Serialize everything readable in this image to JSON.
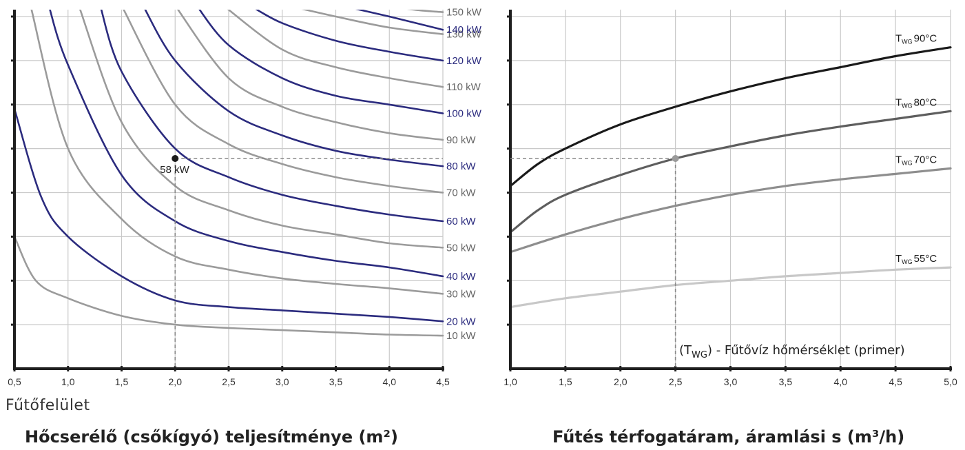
{
  "chart_data": [
    {
      "type": "line",
      "title": "Hőcserélő (csőkígyó) teljesítménye (m²)",
      "xlabel": "Fűtőfelület",
      "ylabel": "",
      "xlim": [
        0.5,
        4.5
      ],
      "ylim": [
        0,
        160
      ],
      "x_ticks": [
        "0,5",
        "1,0",
        "1,5",
        "2,0",
        "2,5",
        "3,0",
        "3,5",
        "4,0",
        "4,5"
      ],
      "grid": true,
      "legend": "none",
      "series": [
        {
          "name": "10 kW",
          "color": "#9b9b9b",
          "points": [
            [
              0.5,
              60
            ],
            [
              0.7,
              40
            ],
            [
              1.0,
              32
            ],
            [
              1.5,
              24
            ],
            [
              2.0,
              20
            ],
            [
              2.5,
              18.5
            ],
            [
              3.0,
              17.5
            ],
            [
              3.5,
              16.5
            ],
            [
              4.0,
              15.5
            ],
            [
              4.5,
              15
            ]
          ]
        },
        {
          "name": "20 kW",
          "color": "#2b2b7e",
          "points": [
            [
              0.5,
              118
            ],
            [
              0.75,
              78
            ],
            [
              1.0,
              60
            ],
            [
              1.5,
              42
            ],
            [
              2.0,
              31
            ],
            [
              2.5,
              28
            ],
            [
              3.0,
              26.5
            ],
            [
              3.5,
              25
            ],
            [
              4.0,
              23.5
            ],
            [
              4.5,
              21.5
            ]
          ]
        },
        {
          "name": "30 kW",
          "color": "#9b9b9b",
          "points": [
            [
              0.65,
              165
            ],
            [
              1.0,
              100
            ],
            [
              1.5,
              68
            ],
            [
              2.0,
              51
            ],
            [
              2.5,
              45
            ],
            [
              3.0,
              41
            ],
            [
              3.5,
              38.5
            ],
            [
              4.0,
              36.5
            ],
            [
              4.5,
              34
            ]
          ]
        },
        {
          "name": "40 kW",
          "color": "#2b2b7e",
          "points": [
            [
              0.82,
              165
            ],
            [
              1.0,
              138
            ],
            [
              1.5,
              88
            ],
            [
              2.0,
              67
            ],
            [
              2.5,
              58
            ],
            [
              3.0,
              53
            ],
            [
              3.5,
              49
            ],
            [
              4.0,
              46
            ],
            [
              4.5,
              42
            ]
          ]
        },
        {
          "name": "50 kW",
          "color": "#9b9b9b",
          "points": [
            [
              1.1,
              165
            ],
            [
              1.5,
              112
            ],
            [
              2.0,
              83
            ],
            [
              2.5,
              72
            ],
            [
              3.0,
              65
            ],
            [
              3.5,
              61
            ],
            [
              4.0,
              57
            ],
            [
              4.5,
              55
            ]
          ]
        },
        {
          "name": "60 kW",
          "color": "#2b2b7e",
          "points": [
            [
              1.3,
              165
            ],
            [
              1.5,
              135
            ],
            [
              2.0,
              100
            ],
            [
              2.5,
              87
            ],
            [
              3.0,
              79
            ],
            [
              3.5,
              74
            ],
            [
              4.0,
              70
            ],
            [
              4.5,
              67
            ]
          ]
        },
        {
          "name": "70 kW",
          "color": "#9b9b9b",
          "points": [
            [
              1.5,
              165
            ],
            [
              2.0,
              120
            ],
            [
              2.5,
              102
            ],
            [
              3.0,
              93
            ],
            [
              3.5,
              87
            ],
            [
              4.0,
              83
            ],
            [
              4.5,
              80
            ]
          ]
        },
        {
          "name": "80 kW",
          "color": "#2b2b7e",
          "points": [
            [
              1.7,
              165
            ],
            [
              2.0,
              140
            ],
            [
              2.5,
              117
            ],
            [
              3.0,
              106
            ],
            [
              3.5,
              99
            ],
            [
              4.0,
              95
            ],
            [
              4.5,
              92
            ]
          ]
        },
        {
          "name": "90 kW",
          "color": "#9b9b9b",
          "points": [
            [
              2.0,
              165
            ],
            [
              2.5,
              132
            ],
            [
              3.0,
              119
            ],
            [
              3.5,
              112
            ],
            [
              4.0,
              107
            ],
            [
              4.5,
              104
            ]
          ]
        },
        {
          "name": "100 kW",
          "color": "#2b2b7e",
          "points": [
            [
              2.2,
              165
            ],
            [
              2.5,
              147
            ],
            [
              3.0,
              132
            ],
            [
              3.5,
              124
            ],
            [
              4.0,
              120
            ],
            [
              4.5,
              116
            ]
          ]
        },
        {
          "name": "110 kW",
          "color": "#9b9b9b",
          "points": [
            [
              2.45,
              165
            ],
            [
              3.0,
              145
            ],
            [
              3.5,
              137
            ],
            [
              4.0,
              132
            ],
            [
              4.5,
              128
            ]
          ]
        },
        {
          "name": "120 kW",
          "color": "#2b2b7e",
          "points": [
            [
              2.7,
              165
            ],
            [
              3.0,
              157
            ],
            [
              3.5,
              149
            ],
            [
              4.0,
              144
            ],
            [
              4.5,
              140
            ]
          ]
        },
        {
          "name": "130 kW",
          "color": "#9b9b9b",
          "points": [
            [
              3.05,
              165
            ],
            [
              3.5,
              160
            ],
            [
              4.0,
              155
            ],
            [
              4.5,
              152
            ]
          ]
        },
        {
          "name": "140 kW",
          "color": "#2b2b7e",
          "points": [
            [
              3.55,
              165
            ],
            [
              4.0,
              160
            ],
            [
              4.5,
              154
            ]
          ]
        },
        {
          "name": "150 kW",
          "color": "#9b9b9b",
          "points": [
            [
              3.95,
              165
            ],
            [
              4.25,
              163
            ],
            [
              4.5,
              162
            ]
          ]
        }
      ],
      "marker": {
        "label": "58 kW",
        "x": 2.0,
        "y": 95.5
      }
    },
    {
      "type": "line",
      "title": "Fűtés térfogatáram, áramlási s (m³/h)",
      "xlabel": "",
      "ylabel": "",
      "xlim": [
        1.0,
        5.0
      ],
      "ylim": [
        0,
        160
      ],
      "x_ticks": [
        "1,0",
        "1,5",
        "2,0",
        "2,5",
        "3,0",
        "3,5",
        "4,0",
        "4,5",
        "5,0"
      ],
      "grid": true,
      "legend": "none",
      "series": [
        {
          "name": "90°C",
          "color": "#1a1a1a",
          "points": [
            [
              1.0,
              83
            ],
            [
              1.25,
              93
            ],
            [
              1.5,
              100
            ],
            [
              2.0,
              111
            ],
            [
              2.5,
              119
            ],
            [
              3.0,
              126
            ],
            [
              3.5,
              132
            ],
            [
              4.0,
              137
            ],
            [
              4.5,
              142
            ],
            [
              5.0,
              146
            ]
          ]
        },
        {
          "name": "80°C",
          "color": "#5e5e5e",
          "points": [
            [
              1.0,
              62
            ],
            [
              1.25,
              72
            ],
            [
              1.5,
              79
            ],
            [
              2.0,
              88
            ],
            [
              2.5,
              95.5
            ],
            [
              3.0,
              101
            ],
            [
              3.5,
              106
            ],
            [
              4.0,
              110
            ],
            [
              4.5,
              113.5
            ],
            [
              5.0,
              117
            ]
          ]
        },
        {
          "name": "70°C",
          "color": "#8e8e8e",
          "points": [
            [
              1.0,
              53
            ],
            [
              1.5,
              61
            ],
            [
              2.0,
              68
            ],
            [
              2.5,
              74
            ],
            [
              3.0,
              79
            ],
            [
              3.5,
              83
            ],
            [
              4.0,
              86
            ],
            [
              4.5,
              88.5
            ],
            [
              5.0,
              91
            ]
          ]
        },
        {
          "name": "55°C",
          "color": "#c8c8c8",
          "points": [
            [
              1.0,
              28
            ],
            [
              1.5,
              32
            ],
            [
              2.0,
              35
            ],
            [
              2.5,
              38
            ],
            [
              3.0,
              40
            ],
            [
              3.5,
              42
            ],
            [
              4.0,
              43.5
            ],
            [
              4.5,
              45
            ],
            [
              5.0,
              46
            ]
          ]
        }
      ],
      "series_label_prefix": "T",
      "series_label_subscript": "WG",
      "note": "- Fűtővíz hőmérséklet (primer)",
      "note_prefix": "(T",
      "note_subscript": "WG",
      "note_suffix": ")",
      "marker": {
        "x": 2.5,
        "y": 95.5
      }
    }
  ],
  "colors": {
    "grid": "#c9c9c9",
    "axis": "#1f1f1f",
    "guide": "#8a8a8a",
    "blue_label": "#2b2b7e",
    "grey_label": "#666666"
  }
}
